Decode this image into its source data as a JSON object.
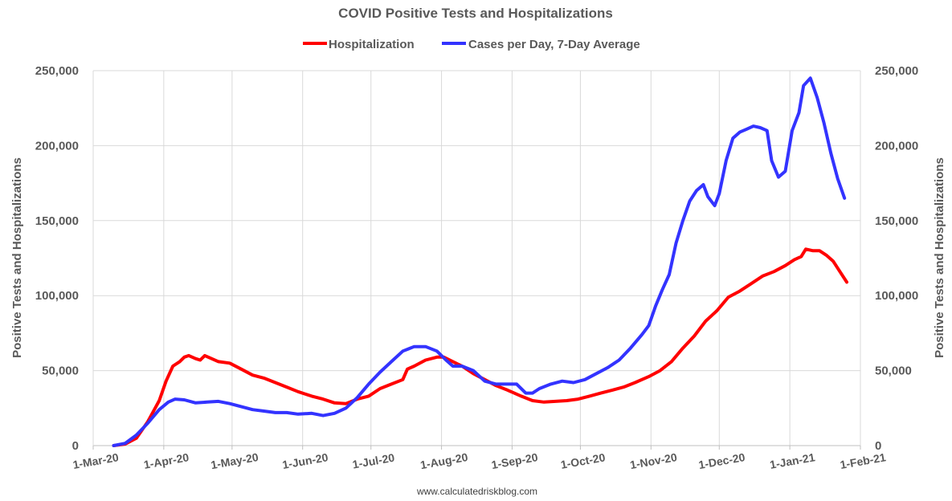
{
  "chart_data": {
    "type": "line",
    "title": "COVID Positive Tests and Hospitalizations",
    "ylabel": "Positive Tests and Hospitalizations",
    "ylabel_right": "Positive Tests and Hospitalizations",
    "ylim": [
      0,
      250000
    ],
    "y_ticks": [
      0,
      50000,
      100000,
      150000,
      200000,
      250000
    ],
    "y_tick_labels": [
      "0",
      "50,000",
      "100,000",
      "150,000",
      "200,000",
      "250,000"
    ],
    "x_tick_labels": [
      "1-Mar-20",
      "1-Apr-20",
      "1-May-20",
      "1-Jun-20",
      "1-Jul-20",
      "1-Aug-20",
      "1-Sep-20",
      "1-Oct-20",
      "1-Nov-20",
      "1-Dec-20",
      "1-Jan-21",
      "1-Feb-21"
    ],
    "x_tick_dates": [
      "2020-03-01",
      "2020-04-01",
      "2020-05-01",
      "2020-06-01",
      "2020-07-01",
      "2020-08-01",
      "2020-09-01",
      "2020-10-01",
      "2020-11-01",
      "2020-12-01",
      "2021-01-01",
      "2021-02-01"
    ],
    "xlim": [
      "2020-03-01",
      "2021-02-01"
    ],
    "grid": true,
    "legend_position": "top-center",
    "source_text": "www.calculatedriskblog.com",
    "series": [
      {
        "name": "Hospitalization",
        "color": "#ff0000",
        "points": [
          [
            "2020-03-10",
            0
          ],
          [
            "2020-03-15",
            1000
          ],
          [
            "2020-03-20",
            5000
          ],
          [
            "2020-03-25",
            16000
          ],
          [
            "2020-03-30",
            30000
          ],
          [
            "2020-04-02",
            43000
          ],
          [
            "2020-04-05",
            53000
          ],
          [
            "2020-04-08",
            56000
          ],
          [
            "2020-04-10",
            59000
          ],
          [
            "2020-04-12",
            60000
          ],
          [
            "2020-04-15",
            58000
          ],
          [
            "2020-04-17",
            57000
          ],
          [
            "2020-04-19",
            60000
          ],
          [
            "2020-04-22",
            58000
          ],
          [
            "2020-04-25",
            56000
          ],
          [
            "2020-04-30",
            55000
          ],
          [
            "2020-05-05",
            51000
          ],
          [
            "2020-05-10",
            47000
          ],
          [
            "2020-05-15",
            45000
          ],
          [
            "2020-05-20",
            42000
          ],
          [
            "2020-05-25",
            39000
          ],
          [
            "2020-05-30",
            36000
          ],
          [
            "2020-06-05",
            33000
          ],
          [
            "2020-06-10",
            31000
          ],
          [
            "2020-06-15",
            28500
          ],
          [
            "2020-06-20",
            28000
          ],
          [
            "2020-06-25",
            31000
          ],
          [
            "2020-06-30",
            33000
          ],
          [
            "2020-07-05",
            38000
          ],
          [
            "2020-07-10",
            41000
          ],
          [
            "2020-07-15",
            44000
          ],
          [
            "2020-07-17",
            51000
          ],
          [
            "2020-07-20",
            53000
          ],
          [
            "2020-07-25",
            57000
          ],
          [
            "2020-07-30",
            59000
          ],
          [
            "2020-08-02",
            59000
          ],
          [
            "2020-08-06",
            56000
          ],
          [
            "2020-08-10",
            53000
          ],
          [
            "2020-08-15",
            48000
          ],
          [
            "2020-08-20",
            44000
          ],
          [
            "2020-08-25",
            40000
          ],
          [
            "2020-08-30",
            37000
          ],
          [
            "2020-09-05",
            33000
          ],
          [
            "2020-09-10",
            30000
          ],
          [
            "2020-09-15",
            29000
          ],
          [
            "2020-09-20",
            29500
          ],
          [
            "2020-09-25",
            30000
          ],
          [
            "2020-09-30",
            31000
          ],
          [
            "2020-10-05",
            33000
          ],
          [
            "2020-10-10",
            35000
          ],
          [
            "2020-10-15",
            37000
          ],
          [
            "2020-10-20",
            39000
          ],
          [
            "2020-10-25",
            42000
          ],
          [
            "2020-10-31",
            46000
          ],
          [
            "2020-11-05",
            50000
          ],
          [
            "2020-11-10",
            56000
          ],
          [
            "2020-11-15",
            65000
          ],
          [
            "2020-11-20",
            73000
          ],
          [
            "2020-11-25",
            83000
          ],
          [
            "2020-11-30",
            90000
          ],
          [
            "2020-12-05",
            99000
          ],
          [
            "2020-12-10",
            103000
          ],
          [
            "2020-12-15",
            108000
          ],
          [
            "2020-12-20",
            113000
          ],
          [
            "2020-12-25",
            116000
          ],
          [
            "2020-12-30",
            120000
          ],
          [
            "2021-01-03",
            124000
          ],
          [
            "2021-01-06",
            126000
          ],
          [
            "2021-01-08",
            131000
          ],
          [
            "2021-01-11",
            130000
          ],
          [
            "2021-01-14",
            130000
          ],
          [
            "2021-01-17",
            127000
          ],
          [
            "2021-01-20",
            123000
          ],
          [
            "2021-01-23",
            116000
          ],
          [
            "2021-01-26",
            109000
          ]
        ]
      },
      {
        "name": "Cases per Day, 7-Day Average",
        "color": "#3333ff",
        "points": [
          [
            "2020-03-10",
            0
          ],
          [
            "2020-03-15",
            1500
          ],
          [
            "2020-03-20",
            7000
          ],
          [
            "2020-03-25",
            15000
          ],
          [
            "2020-03-30",
            24000
          ],
          [
            "2020-04-03",
            29000
          ],
          [
            "2020-04-06",
            31000
          ],
          [
            "2020-04-10",
            30500
          ],
          [
            "2020-04-15",
            28500
          ],
          [
            "2020-04-20",
            29000
          ],
          [
            "2020-04-25",
            29500
          ],
          [
            "2020-04-30",
            28000
          ],
          [
            "2020-05-05",
            26000
          ],
          [
            "2020-05-10",
            24000
          ],
          [
            "2020-05-15",
            23000
          ],
          [
            "2020-05-20",
            22000
          ],
          [
            "2020-05-25",
            22000
          ],
          [
            "2020-05-30",
            21000
          ],
          [
            "2020-06-05",
            21500
          ],
          [
            "2020-06-10",
            20000
          ],
          [
            "2020-06-15",
            21500
          ],
          [
            "2020-06-20",
            25000
          ],
          [
            "2020-06-25",
            32000
          ],
          [
            "2020-06-30",
            41000
          ],
          [
            "2020-07-05",
            49000
          ],
          [
            "2020-07-10",
            56000
          ],
          [
            "2020-07-15",
            63000
          ],
          [
            "2020-07-20",
            66000
          ],
          [
            "2020-07-25",
            66000
          ],
          [
            "2020-07-30",
            63000
          ],
          [
            "2020-08-03",
            57000
          ],
          [
            "2020-08-06",
            53000
          ],
          [
            "2020-08-10",
            53000
          ],
          [
            "2020-08-15",
            50000
          ],
          [
            "2020-08-20",
            43000
          ],
          [
            "2020-08-25",
            41000
          ],
          [
            "2020-08-30",
            41000
          ],
          [
            "2020-09-03",
            41000
          ],
          [
            "2020-09-07",
            35000
          ],
          [
            "2020-09-10",
            35000
          ],
          [
            "2020-09-13",
            38000
          ],
          [
            "2020-09-18",
            41000
          ],
          [
            "2020-09-23",
            43000
          ],
          [
            "2020-09-28",
            42000
          ],
          [
            "2020-10-03",
            44000
          ],
          [
            "2020-10-08",
            48000
          ],
          [
            "2020-10-13",
            52000
          ],
          [
            "2020-10-18",
            57000
          ],
          [
            "2020-10-23",
            65000
          ],
          [
            "2020-10-28",
            74000
          ],
          [
            "2020-10-31",
            80000
          ],
          [
            "2020-11-03",
            93000
          ],
          [
            "2020-11-06",
            104000
          ],
          [
            "2020-11-09",
            114000
          ],
          [
            "2020-11-12",
            135000
          ],
          [
            "2020-11-15",
            150000
          ],
          [
            "2020-11-18",
            163000
          ],
          [
            "2020-11-21",
            170000
          ],
          [
            "2020-11-24",
            174000
          ],
          [
            "2020-11-26",
            166000
          ],
          [
            "2020-11-29",
            160000
          ],
          [
            "2020-12-01",
            168000
          ],
          [
            "2020-12-04",
            190000
          ],
          [
            "2020-12-07",
            205000
          ],
          [
            "2020-12-10",
            209000
          ],
          [
            "2020-12-13",
            211000
          ],
          [
            "2020-12-16",
            213000
          ],
          [
            "2020-12-19",
            212000
          ],
          [
            "2020-12-22",
            210000
          ],
          [
            "2020-12-24",
            190000
          ],
          [
            "2020-12-27",
            179000
          ],
          [
            "2020-12-30",
            183000
          ],
          [
            "2021-01-02",
            210000
          ],
          [
            "2021-01-05",
            222000
          ],
          [
            "2021-01-07",
            240000
          ],
          [
            "2021-01-10",
            245000
          ],
          [
            "2021-01-13",
            232000
          ],
          [
            "2021-01-16",
            215000
          ],
          [
            "2021-01-19",
            195000
          ],
          [
            "2021-01-22",
            178000
          ],
          [
            "2021-01-25",
            165000
          ]
        ]
      }
    ]
  }
}
